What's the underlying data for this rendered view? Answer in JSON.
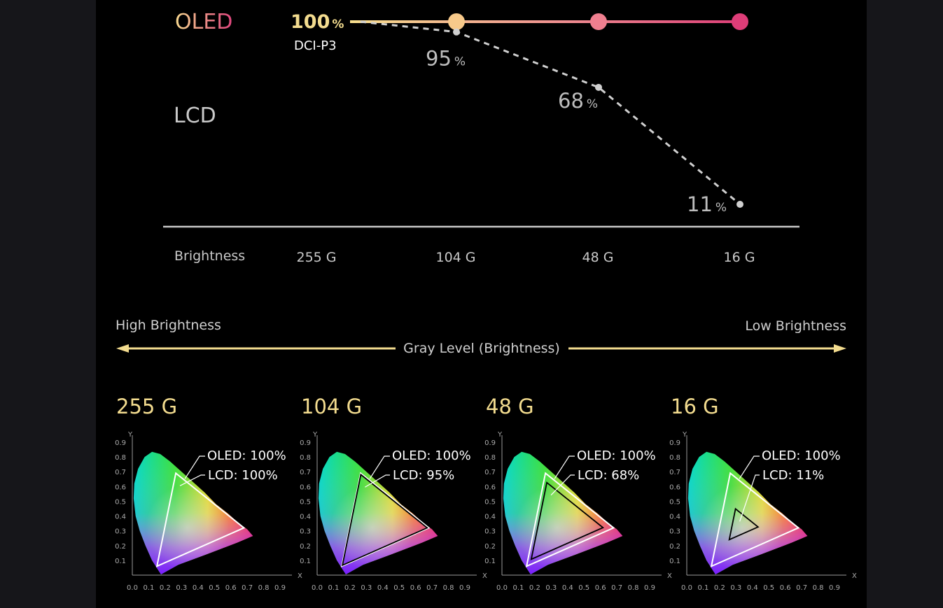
{
  "colors": {
    "background": "#000000",
    "frame": "#16161a",
    "gold": "#f3dc8f",
    "oled_start": "#f7d98f",
    "oled_mid": "#ef7f90",
    "oled_end": "#de3d78",
    "lcd_text": "#c9c9c9",
    "axis_line": "#c8c8c8"
  },
  "chart_data": [
    {
      "type": "line",
      "categories": [
        "255 G",
        "104 G",
        "48 G",
        "16 G"
      ],
      "xlabel": "Brightness",
      "ylim": [
        0,
        100
      ],
      "series": [
        {
          "name": "OLED",
          "values": [
            100,
            100,
            100,
            100
          ]
        },
        {
          "name": "LCD",
          "values": [
            100,
            95,
            68,
            11
          ]
        }
      ],
      "annotations": {
        "oled_value": "100",
        "unit": "%",
        "standard": "DCI-P3",
        "lcd_labels": [
          "95",
          "68",
          "11"
        ]
      }
    },
    {
      "type": "area",
      "xlabel": "X",
      "ylabel": "Y",
      "xticks": [
        "0.0",
        "0.1",
        "0.2",
        "0.3",
        "0.4",
        "0.5",
        "0.6",
        "0.7",
        "0.8",
        "0.9"
      ],
      "yticks": [
        "0.1",
        "0.2",
        "0.3",
        "0.4",
        "0.5",
        "0.6",
        "0.7",
        "0.8",
        "0.9"
      ],
      "xlim": [
        0,
        0.9
      ],
      "ylim": [
        0,
        0.9
      ],
      "oled_triangle": [
        [
          0.68,
          0.32
        ],
        [
          0.265,
          0.69
        ],
        [
          0.15,
          0.06
        ]
      ],
      "panels": [
        {
          "title": "255 G",
          "oled_label": "OLED: 100%",
          "lcd_label": "LCD: 100%",
          "lcd_coverage": 100
        },
        {
          "title": "104 G",
          "oled_label": "OLED: 100%",
          "lcd_label": "LCD: 95%",
          "lcd_coverage": 95
        },
        {
          "title": "48 G",
          "oled_label": "OLED: 100%",
          "lcd_label": "LCD: 68%",
          "lcd_coverage": 68
        },
        {
          "title": "16 G",
          "oled_label": "OLED: 100%",
          "lcd_label": "LCD: 11%",
          "lcd_coverage": 11
        }
      ]
    }
  ],
  "labels": {
    "oled": "OLED",
    "lcd": "LCD",
    "high_brightness": "High Brightness",
    "low_brightness": "Low Brightness",
    "gray_level": "Gray Level (Brightness)"
  }
}
